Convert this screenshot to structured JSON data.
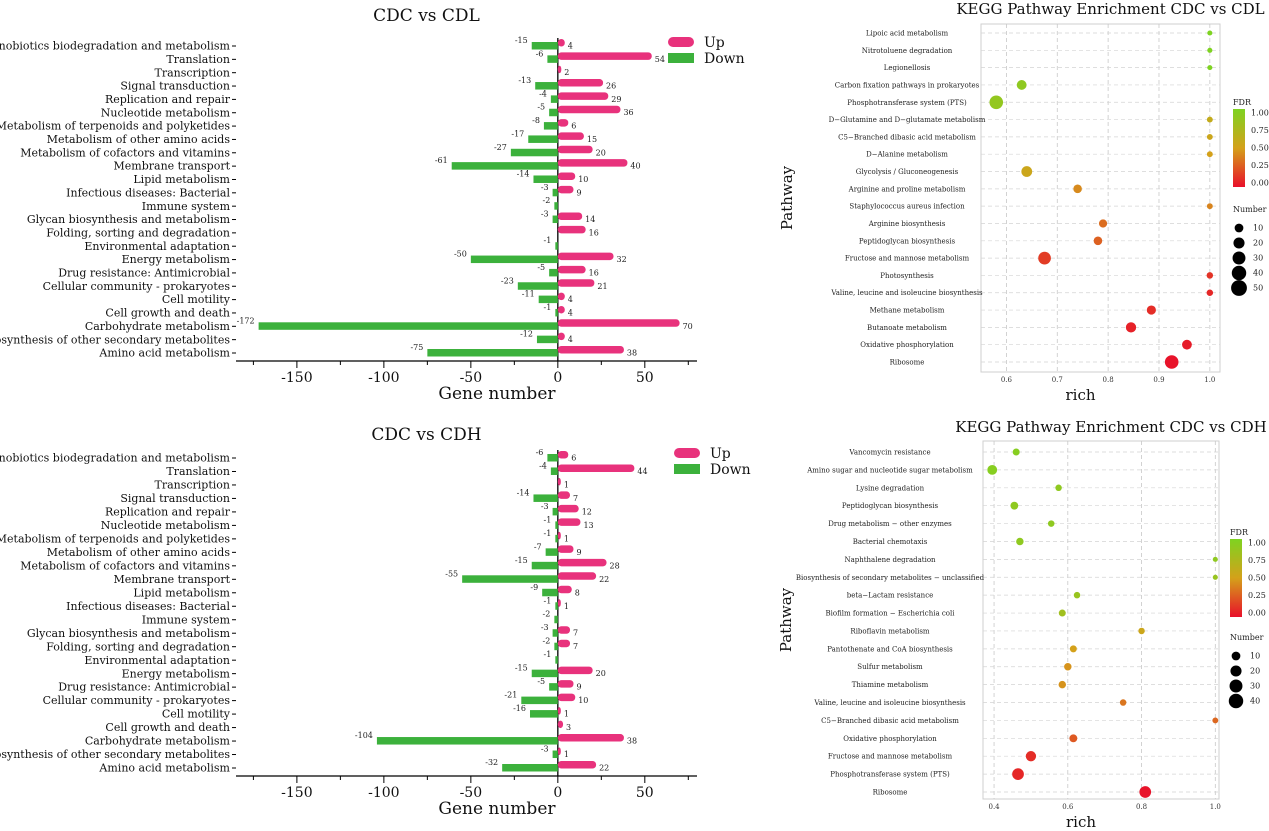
{
  "chart_data": [
    {
      "type": "bar",
      "title": "CDC vs CDL",
      "xlabel": "Gene number",
      "ylabel": "",
      "xlim": [
        -185,
        80
      ],
      "xticks": [
        -150,
        -100,
        -50,
        0,
        50
      ],
      "categories": [
        "Xenobiotics biodegradation and metabolism",
        "Translation",
        "Transcription",
        "Signal transduction",
        "Replication and repair",
        "Nucleotide metabolism",
        "Metabolism of terpenoids and polyketides",
        "Metabolism of other amino acids",
        "Metabolism of cofactors and vitamins",
        "Membrane transport",
        "Lipid metabolism",
        "Infectious diseases: Bacterial",
        "Immune system",
        "Glycan biosynthesis and metabolism",
        "Folding, sorting and degradation",
        "Environmental adaptation",
        "Energy metabolism",
        "Drug resistance: Antimicrobial",
        "Cellular community - prokaryotes",
        "Cell motility",
        "Cell growth and death",
        "Carbohydrate metabolism",
        "Biosynthesis of other secondary metabolites",
        "Amino acid metabolism"
      ],
      "series": [
        {
          "name": "Up",
          "color": "#e8327c",
          "values": [
            4,
            54,
            2,
            26,
            29,
            36,
            6,
            15,
            20,
            40,
            10,
            9,
            null,
            14,
            16,
            null,
            32,
            16,
            21,
            4,
            4,
            70,
            4,
            38
          ]
        },
        {
          "name": "Down",
          "color": "#3cb13c",
          "values": [
            -15,
            -6,
            null,
            -13,
            -4,
            -5,
            -8,
            -17,
            -27,
            -61,
            -14,
            -3,
            -2,
            -3,
            null,
            -1,
            -50,
            -5,
            -23,
            -11,
            -1,
            -172,
            -12,
            -75
          ]
        }
      ],
      "legend_position": "top-right"
    },
    {
      "type": "bar",
      "title": "CDC vs CDH",
      "xlabel": "Gene number",
      "ylabel": "",
      "xlim": [
        -185,
        80
      ],
      "xticks": [
        -150,
        -100,
        -50,
        0,
        50
      ],
      "categories": [
        "Xenobiotics biodegradation and metabolism",
        "Translation",
        "Transcription",
        "Signal transduction",
        "Replication and repair",
        "Nucleotide metabolism",
        "Metabolism of terpenoids and polyketides",
        "Metabolism of other amino acids",
        "Metabolism of cofactors and vitamins",
        "Membrane transport",
        "Lipid metabolism",
        "Infectious diseases: Bacterial",
        "Immune system",
        "Glycan biosynthesis and metabolism",
        "Folding, sorting and degradation",
        "Environmental adaptation",
        "Energy metabolism",
        "Drug resistance: Antimicrobial",
        "Cellular community - prokaryotes",
        "Cell motility",
        "Cell growth and death",
        "Carbohydrate metabolism",
        "Biosynthesis of other secondary metabolites",
        "Amino acid metabolism"
      ],
      "series": [
        {
          "name": "Up",
          "color": "#e8327c",
          "values": [
            6,
            44,
            1,
            7,
            12,
            13,
            1,
            9,
            28,
            22,
            8,
            1,
            null,
            7,
            7,
            null,
            20,
            9,
            10,
            1,
            3,
            38,
            1,
            22
          ]
        },
        {
          "name": "Down",
          "color": "#3cb13c",
          "values": [
            -6,
            -4,
            null,
            -14,
            -3,
            -1,
            -1,
            -7,
            -15,
            -55,
            -9,
            -1,
            -2,
            -3,
            -2,
            -1,
            -15,
            -5,
            -21,
            -16,
            null,
            -104,
            -3,
            -32
          ]
        }
      ],
      "legend_position": "top-right"
    },
    {
      "type": "scatter",
      "title": "KEGG Pathway Enrichment CDC vs CDL",
      "xlabel": "rich",
      "ylabel": "Pathway",
      "xlim": [
        0.55,
        1.02
      ],
      "xticks": [
        0.6,
        0.7,
        0.8,
        0.9,
        1.0
      ],
      "xtick_labels": [
        "0.6",
        "0.7",
        "0.8",
        "0.9",
        "1.0"
      ],
      "categories": [
        "Lipoic acid metabolism",
        "Nitrotoluene degradation",
        "Legionellosis",
        "Carbon fixation pathways in prokaryotes",
        "Phosphotransferase system (PTS)",
        "D−Glutamine and D−glutamate metabolism",
        "C5−Branched dibasic acid metabolism",
        "D−Alanine metabolism",
        "Glycolysis / Gluconeogenesis",
        "Arginine and proline metabolism",
        "Staphylococcus aureus infection",
        "Arginine biosynthesis",
        "Peptidoglycan biosynthesis",
        "Fructose and mannose metabolism",
        "Photosynthesis",
        "Valine, leucine and isoleucine biosynthesis",
        "Methane metabolism",
        "Butanoate metabolism",
        "Oxidative phosphorylation",
        "Ribosome"
      ],
      "points": [
        {
          "rich": 1.0,
          "number": 1,
          "fdr": 1.0
        },
        {
          "rich": 1.0,
          "number": 1,
          "fdr": 1.0
        },
        {
          "rich": 1.0,
          "number": 1,
          "fdr": 1.0
        },
        {
          "rich": 0.63,
          "number": 12,
          "fdr": 0.9
        },
        {
          "rich": 0.58,
          "number": 30,
          "fdr": 0.88
        },
        {
          "rich": 1.0,
          "number": 2,
          "fdr": 0.6
        },
        {
          "rich": 1.0,
          "number": 2,
          "fdr": 0.55
        },
        {
          "rich": 1.0,
          "number": 2,
          "fdr": 0.5
        },
        {
          "rich": 0.64,
          "number": 16,
          "fdr": 0.55
        },
        {
          "rich": 0.74,
          "number": 8,
          "fdr": 0.42
        },
        {
          "rich": 1.0,
          "number": 2,
          "fdr": 0.4
        },
        {
          "rich": 0.79,
          "number": 7,
          "fdr": 0.32
        },
        {
          "rich": 0.78,
          "number": 8,
          "fdr": 0.28
        },
        {
          "rich": 0.675,
          "number": 25,
          "fdr": 0.15
        },
        {
          "rich": 1.0,
          "number": 3,
          "fdr": 0.12
        },
        {
          "rich": 1.0,
          "number": 3,
          "fdr": 0.08
        },
        {
          "rich": 0.885,
          "number": 10,
          "fdr": 0.1
        },
        {
          "rich": 0.845,
          "number": 14,
          "fdr": 0.06
        },
        {
          "rich": 0.955,
          "number": 12,
          "fdr": 0.04
        },
        {
          "rich": 0.925,
          "number": 30,
          "fdr": 0.01
        }
      ],
      "legend_fdr": {
        "title": "FDR",
        "ticks": [
          "1.00",
          "0.75",
          "0.50",
          "0.25",
          "0.00"
        ],
        "colors": [
          "#7ed321",
          "#d4a11a",
          "#e8102a"
        ]
      },
      "legend_number": {
        "title": "Number",
        "values": [
          10,
          20,
          30,
          40,
          50
        ]
      }
    },
    {
      "type": "scatter",
      "title": "KEGG Pathway Enrichment CDC vs CDH",
      "xlabel": "rich",
      "ylabel": "Pathway",
      "xlim": [
        0.37,
        1.01
      ],
      "xticks": [
        0.4,
        0.6,
        0.8,
        1.0
      ],
      "xtick_labels": [
        "0.4",
        "0.6",
        "0.8",
        "1.0"
      ],
      "categories": [
        "Vancomycin resistance",
        "Amino sugar and nucleotide sugar metabolism",
        "Lysine degradation",
        "Peptidoglycan biosynthesis",
        "Drug metabolism − other enzymes",
        "Bacterial chemotaxis",
        "Naphthalene degradation",
        "Biosynthesis of secondary metabolites − unclassified",
        "beta−Lactam resistance",
        "Biofilm formation − Escherichia coli",
        "Riboflavin metabolism",
        "Pantothenate and CoA biosynthesis",
        "Sulfur metabolism",
        "Thiamine metabolism",
        "Valine, leucine and isoleucine biosynthesis",
        "C5−Branched dibasic acid metabolism",
        "Oxidative phosphorylation",
        "Fructose and mannose metabolism",
        "Phosphotransferase system (PTS)",
        "Ribosome"
      ],
      "points": [
        {
          "rich": 0.46,
          "number": 4,
          "fdr": 0.95
        },
        {
          "rich": 0.395,
          "number": 12,
          "fdr": 0.95
        },
        {
          "rich": 0.575,
          "number": 3,
          "fdr": 0.9
        },
        {
          "rich": 0.455,
          "number": 6,
          "fdr": 0.9
        },
        {
          "rich": 0.555,
          "number": 3,
          "fdr": 0.9
        },
        {
          "rich": 0.47,
          "number": 5,
          "fdr": 0.9
        },
        {
          "rich": 1.0,
          "number": 1,
          "fdr": 0.9
        },
        {
          "rich": 1.0,
          "number": 1,
          "fdr": 0.85
        },
        {
          "rich": 0.625,
          "number": 3,
          "fdr": 0.85
        },
        {
          "rich": 0.585,
          "number": 4,
          "fdr": 0.8
        },
        {
          "rich": 0.8,
          "number": 3,
          "fdr": 0.55
        },
        {
          "rich": 0.615,
          "number": 4,
          "fdr": 0.5
        },
        {
          "rich": 0.6,
          "number": 5,
          "fdr": 0.45
        },
        {
          "rich": 0.585,
          "number": 5,
          "fdr": 0.45
        },
        {
          "rich": 0.75,
          "number": 3,
          "fdr": 0.35
        },
        {
          "rich": 1.0,
          "number": 2,
          "fdr": 0.3
        },
        {
          "rich": 0.615,
          "number": 6,
          "fdr": 0.25
        },
        {
          "rich": 0.5,
          "number": 14,
          "fdr": 0.1
        },
        {
          "rich": 0.465,
          "number": 20,
          "fdr": 0.08
        },
        {
          "rich": 0.81,
          "number": 20,
          "fdr": 0.01
        }
      ],
      "legend_fdr": {
        "title": "FDR",
        "ticks": [
          "1.00",
          "0.75",
          "0.50",
          "0.25",
          "0.00"
        ],
        "colors": [
          "#7ed321",
          "#d4a11a",
          "#e8102a"
        ]
      },
      "legend_number": {
        "title": "Number",
        "values": [
          10,
          20,
          30,
          40
        ]
      }
    }
  ]
}
